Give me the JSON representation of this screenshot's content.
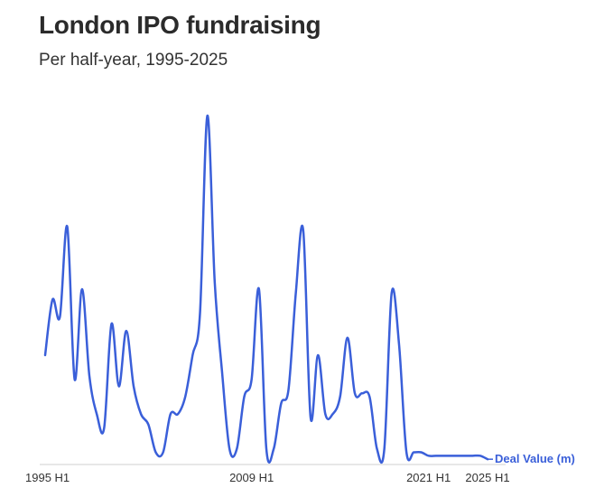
{
  "header": {
    "title": "London IPO fundraising",
    "subtitle": "Per half-year, 1995-2025"
  },
  "colors": {
    "line": "#3a5fd9",
    "axis": "#cfcfcf"
  },
  "chart_data": {
    "type": "line",
    "title": "London IPO fundraising",
    "subtitle": "Per half-year, 1995-2025",
    "xlabel": "",
    "ylabel": "",
    "x_tick_labels": [
      "1995 H1",
      "2009 H1",
      "2021 H1",
      "2025 H1"
    ],
    "x_tick_index": [
      0,
      28,
      52,
      60
    ],
    "ylim": [
      0,
      100
    ],
    "grid": false,
    "legend": "end-of-line label",
    "series": [
      {
        "name": "Deal Value (m)",
        "x": [
          "1995 H1",
          "1995 H2",
          "1996 H1",
          "1996 H2",
          "1997 H1",
          "1997 H2",
          "1998 H1",
          "1998 H2",
          "1999 H1",
          "1999 H2",
          "2000 H1",
          "2000 H2",
          "2001 H1",
          "2001 H2",
          "2002 H1",
          "2002 H2",
          "2003 H1",
          "2003 H2",
          "2004 H1",
          "2004 H2",
          "2005 H1",
          "2005 H2",
          "2006 H1",
          "2006 H2",
          "2007 H1",
          "2007 H2",
          "2008 H1",
          "2008 H2",
          "2009 H1",
          "2009 H2",
          "2010 H1",
          "2010 H2",
          "2011 H1",
          "2011 H2",
          "2012 H1",
          "2012 H2",
          "2013 H1",
          "2013 H2",
          "2014 H1",
          "2014 H2",
          "2015 H1",
          "2015 H2",
          "2016 H1",
          "2016 H2",
          "2017 H1",
          "2017 H2",
          "2018 H1",
          "2018 H2",
          "2019 H1",
          "2019 H2",
          "2020 H1",
          "2020 H2",
          "2021 H1",
          "2021 H2",
          "2022 H1",
          "2022 H2",
          "2023 H1",
          "2023 H2",
          "2024 H1",
          "2024 H2",
          "2025 H1"
        ],
        "values": [
          31,
          47,
          42,
          68,
          24,
          50,
          25,
          14,
          10,
          40,
          22,
          38,
          22,
          14,
          11,
          3,
          3,
          14,
          14,
          19,
          31,
          43,
          100,
          52,
          26,
          4,
          4,
          19,
          24,
          50,
          4,
          4,
          17,
          21,
          49,
          67,
          13,
          31,
          14,
          14,
          19,
          36,
          20,
          20,
          19,
          4,
          4,
          49,
          34,
          3,
          3,
          3,
          2,
          2,
          2,
          2,
          2,
          2,
          2,
          2,
          1
        ]
      }
    ]
  }
}
